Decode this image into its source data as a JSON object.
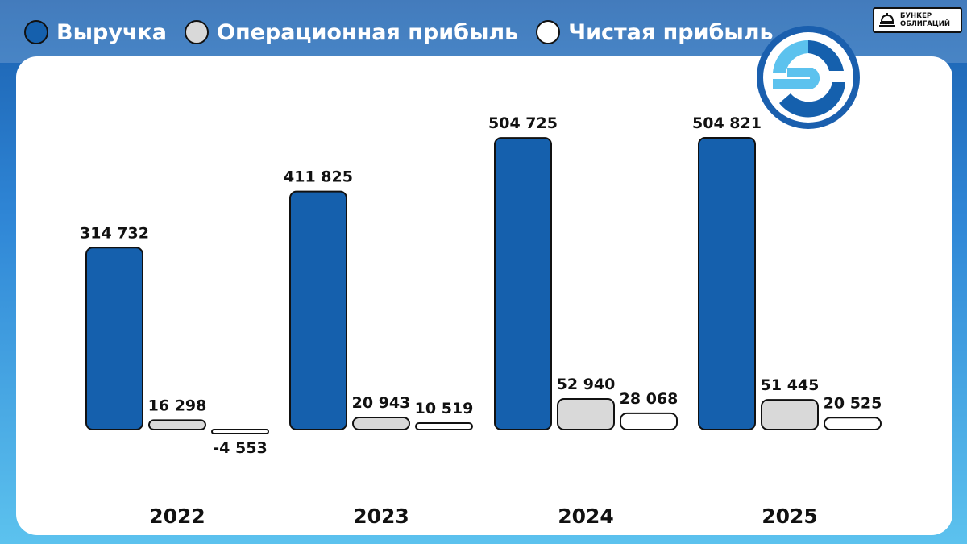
{
  "brand": {
    "line1": "БУНКЕР",
    "line2": "ОБЛИГАЦИЙ"
  },
  "legend": [
    {
      "label": "Выручка",
      "color": "#1560ad"
    },
    {
      "label": "Операционная прибыль",
      "color": "#d9d9d9"
    },
    {
      "label": "Чистая прибыль",
      "color": "#ffffff"
    }
  ],
  "chart_data": {
    "type": "bar",
    "categories": [
      "2022",
      "2023",
      "2024",
      "2025"
    ],
    "series": [
      {
        "name": "Выручка",
        "color": "#1560ad",
        "values": [
          314732,
          411825,
          504725,
          504821
        ],
        "labels": [
          "314 732",
          "411 825",
          "504 725",
          "504 821"
        ]
      },
      {
        "name": "Операционная прибыль",
        "color": "#d9d9d9",
        "values": [
          16298,
          20943,
          52940,
          51445
        ],
        "labels": [
          "16 298",
          "20 943",
          "52 940",
          "51 445"
        ]
      },
      {
        "name": "Чистая прибыль",
        "color": "#ffffff",
        "values": [
          -4553,
          10519,
          28068,
          20525
        ],
        "labels": [
          "-4 553",
          "10 519",
          "28 068",
          "20 525"
        ]
      }
    ],
    "grid": false,
    "legend": "top-left"
  }
}
